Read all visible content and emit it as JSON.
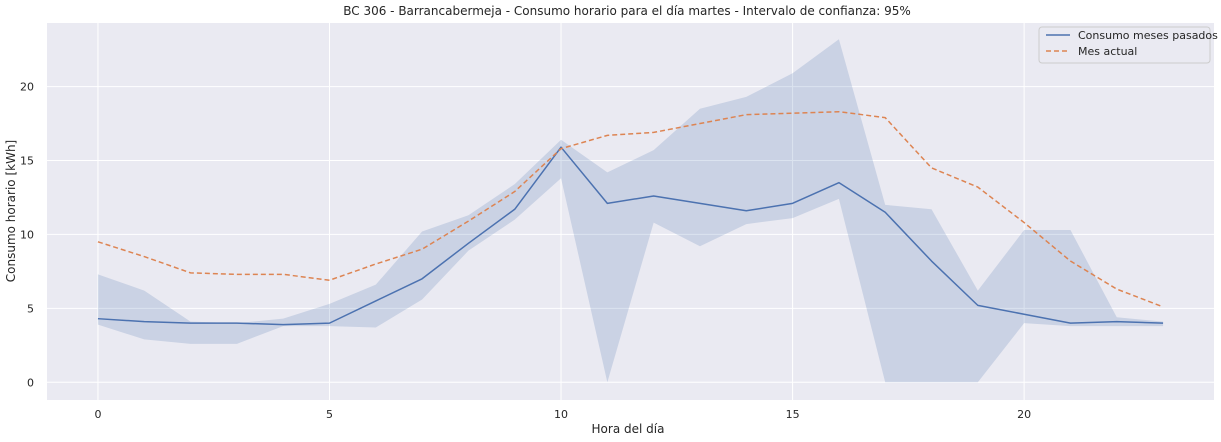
{
  "chart_data": {
    "type": "line",
    "title": "BC 306 - Barrancabermeja - Consumo horario para el día martes - Intervalo de confianza: 95%",
    "xlabel": "Hora del día",
    "ylabel": "Consumo horario [kWh]",
    "xlim": [
      -1.1,
      24.1
    ],
    "ylim": [
      -1.2,
      24.3
    ],
    "xticks": [
      0,
      5,
      10,
      15,
      20
    ],
    "yticks": [
      0,
      5,
      10,
      15,
      20
    ],
    "grid": true,
    "legend_position": "top-right",
    "x": [
      0,
      1,
      2,
      3,
      4,
      5,
      6,
      7,
      8,
      9,
      10,
      11,
      12,
      13,
      14,
      15,
      16,
      17,
      18,
      19,
      20,
      21,
      22,
      23
    ],
    "series": [
      {
        "name": "Consumo meses pasados",
        "style": "solid",
        "color": "#4c72b0",
        "values": [
          4.3,
          4.1,
          4.0,
          4.0,
          3.9,
          4.0,
          5.5,
          7.0,
          9.4,
          11.7,
          15.9,
          12.1,
          12.6,
          12.1,
          11.6,
          12.1,
          13.5,
          11.5,
          8.2,
          5.2,
          4.6,
          4.0,
          4.1,
          4.0
        ],
        "ci_lower": [
          3.9,
          2.9,
          2.6,
          2.6,
          3.8,
          3.8,
          3.7,
          5.6,
          8.9,
          11.0,
          13.8,
          0.0,
          10.8,
          9.2,
          10.7,
          11.1,
          12.4,
          0.0,
          0.0,
          0.0,
          4.0,
          3.8,
          3.8,
          3.8
        ],
        "ci_upper": [
          7.3,
          6.2,
          4.1,
          4.0,
          4.3,
          5.3,
          6.6,
          10.2,
          11.3,
          13.4,
          16.4,
          14.2,
          15.7,
          18.5,
          19.3,
          20.9,
          23.2,
          12.0,
          11.7,
          6.2,
          10.3,
          10.3,
          4.4,
          4.1
        ]
      },
      {
        "name": "Mes actual",
        "style": "dashed",
        "color": "#dd8452",
        "values": [
          9.5,
          8.5,
          7.4,
          7.3,
          7.3,
          6.9,
          8.0,
          9.0,
          10.9,
          12.9,
          15.8,
          16.7,
          16.9,
          17.5,
          18.1,
          18.2,
          18.3,
          17.9,
          14.5,
          13.2,
          10.8,
          8.2,
          6.3,
          5.1
        ]
      }
    ]
  }
}
